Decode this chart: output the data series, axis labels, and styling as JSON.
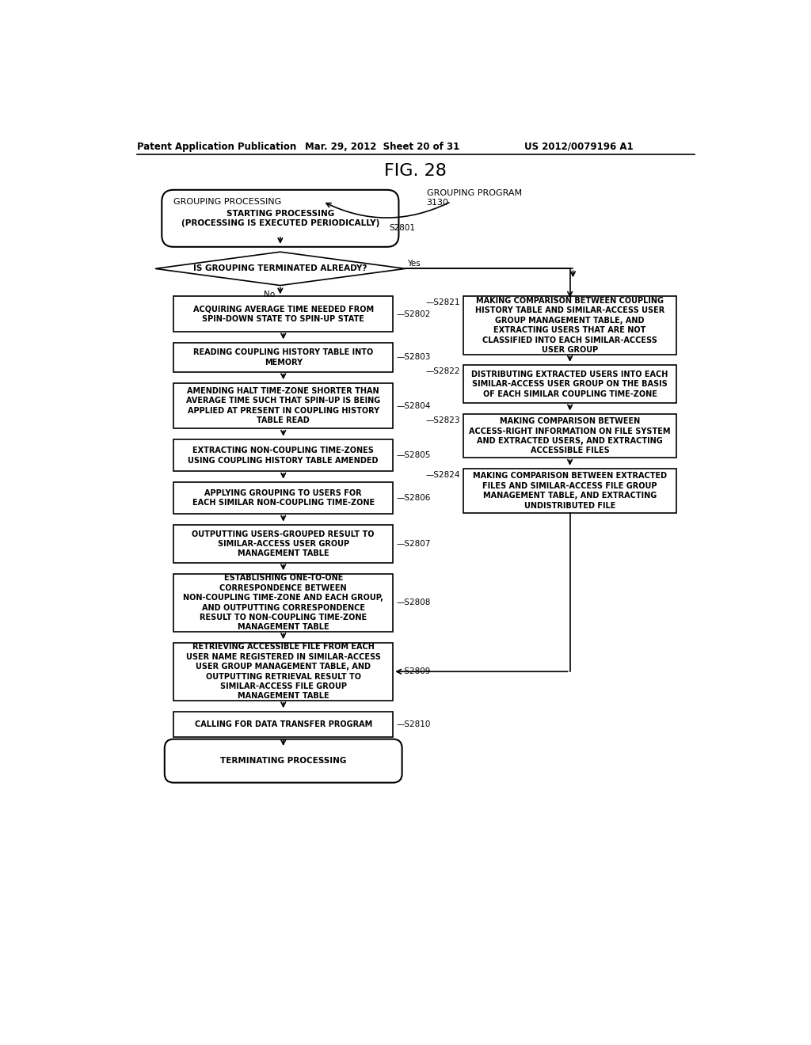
{
  "title_fig": "FIG. 28",
  "header_left": "Patent Application Publication",
  "header_mid": "Mar. 29, 2012  Sheet 20 of 31",
  "header_right": "US 2012/0079196 A1",
  "grouping_program_label": "GROUPING PROGRAM\n3130",
  "grouping_processing_label": "GROUPING PROCESSING",
  "start_text": "STARTING PROCESSING\n(PROCESSING IS EXECUTED PERIODICALLY)",
  "diamond_text": "IS GROUPING TERMINATED ALREADY?",
  "end_text": "TERMINATING PROCESSING",
  "bg_color": "#ffffff",
  "box_fc": "#ffffff",
  "box_ec": "#000000"
}
